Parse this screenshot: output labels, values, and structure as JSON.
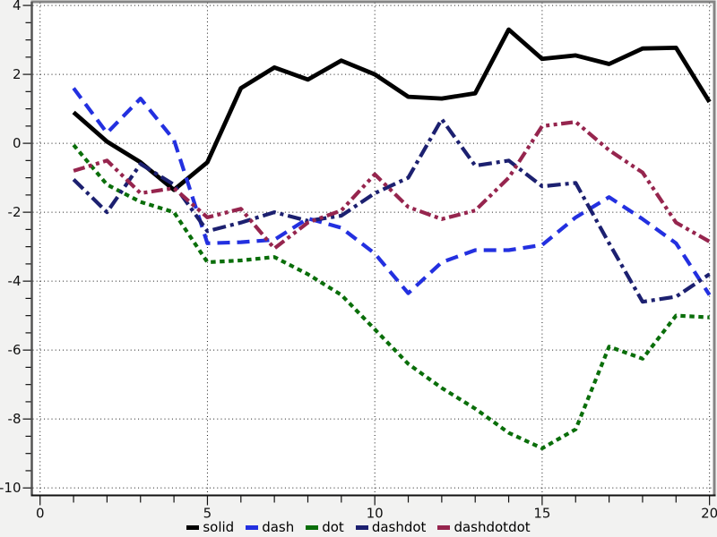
{
  "page": {
    "background": "#f2f2f1",
    "plot_background": "#ffffff",
    "frame_color": "#858585",
    "axis_color": "#1a1a1a",
    "grid_color": "#1a1a1a"
  },
  "chart_data": {
    "type": "line",
    "title": "",
    "xlabel": "",
    "ylabel": "",
    "grid": "dotted",
    "legend_position": "bottom-center",
    "xlim": [
      -0.22,
      20.13
    ],
    "ylim": [
      -10.19,
      4.08
    ],
    "x_major_ticks": [
      0,
      5,
      10,
      15,
      20
    ],
    "x_minor_step": 1,
    "y_major_ticks": [
      4,
      2,
      0,
      -2,
      -4,
      -6,
      -8,
      -10
    ],
    "y_minor_step": 0.5,
    "x": [
      1,
      2,
      3,
      4,
      5,
      6,
      7,
      8,
      9,
      10,
      11,
      12,
      13,
      14,
      15,
      16,
      17,
      18,
      19,
      20
    ],
    "series": [
      {
        "name": "solid",
        "color": "#000000",
        "dash": "solid",
        "values": [
          0.9,
          0.05,
          -0.55,
          -1.35,
          -0.55,
          1.6,
          2.2,
          1.85,
          2.4,
          2.0,
          1.35,
          1.3,
          1.45,
          3.3,
          2.45,
          2.55,
          2.3,
          2.75,
          2.77,
          1.2
        ]
      },
      {
        "name": "dash",
        "color": "#2330e0",
        "dash": "dash",
        "values": [
          1.6,
          0.3,
          1.3,
          0.1,
          -2.9,
          -2.87,
          -2.8,
          -2.18,
          -2.45,
          -3.2,
          -4.35,
          -3.45,
          -3.1,
          -3.1,
          -2.95,
          -2.15,
          -1.56,
          -2.2,
          -2.9,
          -4.4
        ]
      },
      {
        "name": "dot",
        "color": "#0a6e0a",
        "dash": "dot",
        "values": [
          -0.05,
          -1.2,
          -1.7,
          -2.0,
          -3.45,
          -3.4,
          -3.3,
          -3.8,
          -4.4,
          -5.4,
          -6.4,
          -7.1,
          -7.7,
          -8.4,
          -8.85,
          -8.3,
          -5.9,
          -6.25,
          -5.0,
          -5.05
        ]
      },
      {
        "name": "dashdot",
        "color": "#1c2070",
        "dash": "dashdot",
        "values": [
          -1.05,
          -2.0,
          -0.6,
          -1.2,
          -2.55,
          -2.3,
          -2.0,
          -2.25,
          -2.1,
          -1.45,
          -1.0,
          0.7,
          -0.65,
          -0.5,
          -1.25,
          -1.15,
          -2.9,
          -4.6,
          -4.45,
          -3.8
        ]
      },
      {
        "name": "dashdotdot",
        "color": "#96254e",
        "dash": "dashdotdot",
        "values": [
          -0.8,
          -0.5,
          -1.45,
          -1.3,
          -2.15,
          -1.9,
          -3.05,
          -2.3,
          -1.95,
          -0.9,
          -1.85,
          -2.2,
          -1.95,
          -1.0,
          0.5,
          0.62,
          -0.2,
          -0.85,
          -2.3,
          -2.85
        ]
      }
    ]
  }
}
